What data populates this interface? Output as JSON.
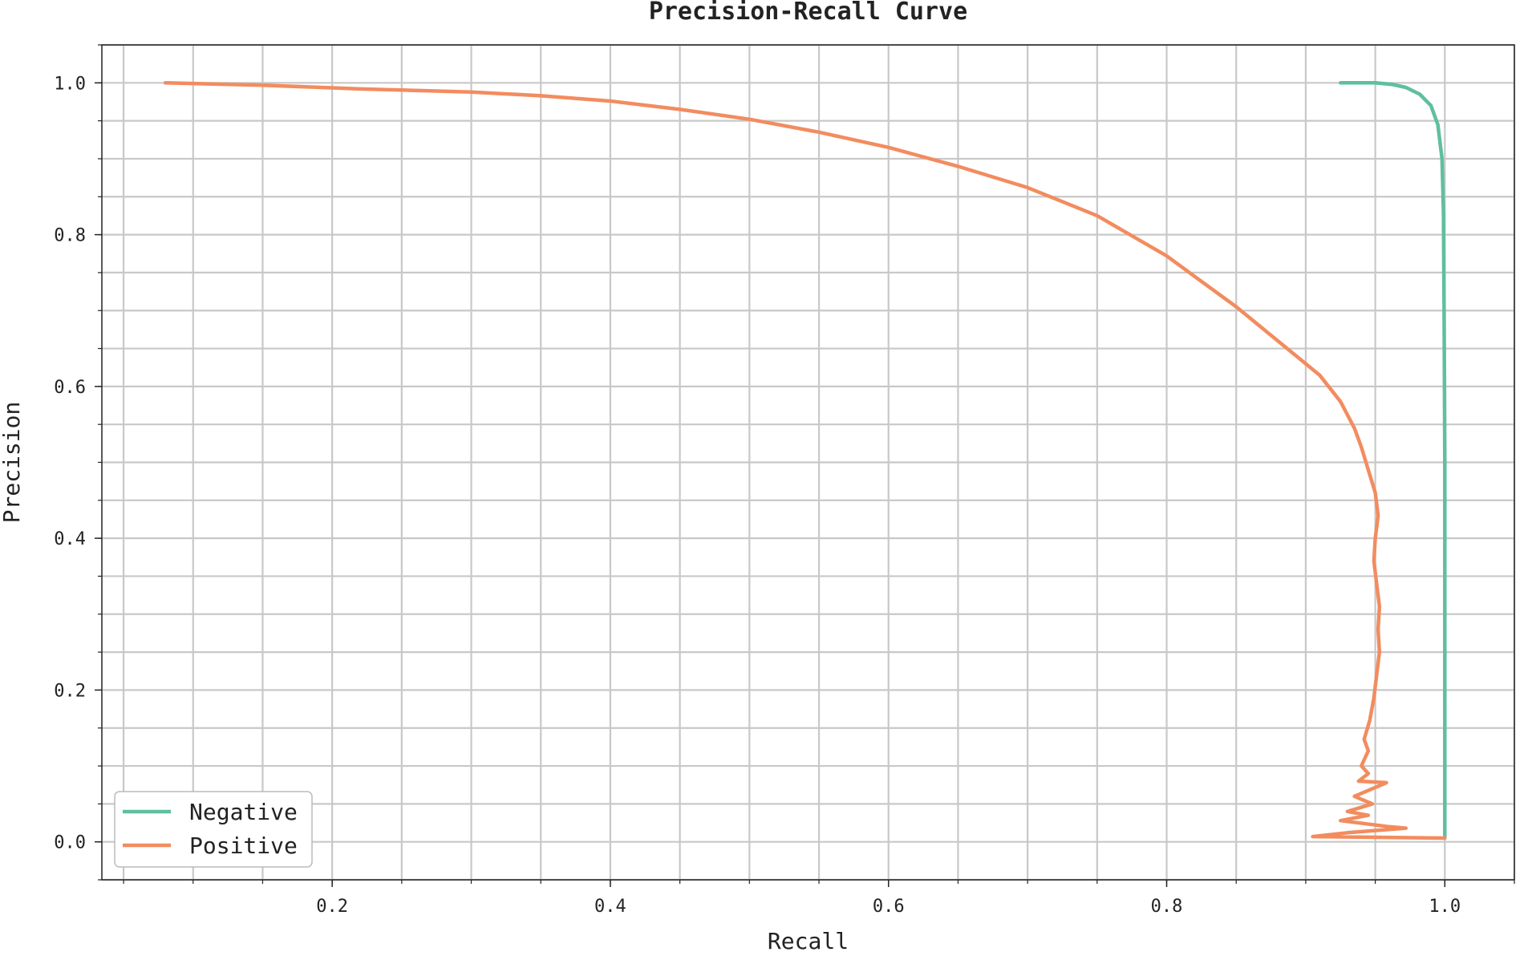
{
  "chart_data": {
    "type": "line",
    "title": "Precision-Recall Curve",
    "xlabel": "Recall",
    "ylabel": "Precision",
    "xlim": [
      0.0344,
      1.05
    ],
    "ylim": [
      -0.05,
      1.05
    ],
    "x_ticks": [
      {
        "value": 0.2,
        "label": "0.2"
      },
      {
        "value": 0.4,
        "label": "0.4"
      },
      {
        "value": 0.6,
        "label": "0.6"
      },
      {
        "value": 0.8,
        "label": "0.8"
      },
      {
        "value": 1.0,
        "label": "1.0"
      }
    ],
    "y_ticks": [
      {
        "value": 0.0,
        "label": "0.0"
      },
      {
        "value": 0.2,
        "label": "0.2"
      },
      {
        "value": 0.4,
        "label": "0.4"
      },
      {
        "value": 0.6,
        "label": "0.6"
      },
      {
        "value": 0.8,
        "label": "0.8"
      },
      {
        "value": 1.0,
        "label": "1.0"
      }
    ],
    "x_minor_step": 0.05,
    "y_minor_step": 0.05,
    "grid": true,
    "legend_position": "lower-left",
    "series": [
      {
        "name": "Negative",
        "color": "#5fbf9f",
        "points": [
          [
            0.925,
            1.0
          ],
          [
            0.95,
            1.0
          ],
          [
            0.962,
            0.998
          ],
          [
            0.972,
            0.994
          ],
          [
            0.982,
            0.985
          ],
          [
            0.99,
            0.97
          ],
          [
            0.995,
            0.945
          ],
          [
            0.998,
            0.9
          ],
          [
            0.999,
            0.83
          ],
          [
            0.9995,
            0.7
          ],
          [
            1.0,
            0.5
          ],
          [
            1.0,
            0.2
          ],
          [
            1.0,
            0.005
          ]
        ]
      },
      {
        "name": "Positive",
        "color": "#f28c5f",
        "points": [
          [
            0.08,
            1.0
          ],
          [
            0.15,
            0.997
          ],
          [
            0.22,
            0.992
          ],
          [
            0.3,
            0.988
          ],
          [
            0.35,
            0.983
          ],
          [
            0.4,
            0.976
          ],
          [
            0.45,
            0.965
          ],
          [
            0.5,
            0.952
          ],
          [
            0.55,
            0.935
          ],
          [
            0.6,
            0.915
          ],
          [
            0.65,
            0.89
          ],
          [
            0.7,
            0.862
          ],
          [
            0.75,
            0.825
          ],
          [
            0.8,
            0.772
          ],
          [
            0.82,
            0.745
          ],
          [
            0.85,
            0.705
          ],
          [
            0.88,
            0.66
          ],
          [
            0.91,
            0.615
          ],
          [
            0.925,
            0.58
          ],
          [
            0.935,
            0.545
          ],
          [
            0.94,
            0.52
          ],
          [
            0.945,
            0.49
          ],
          [
            0.95,
            0.46
          ],
          [
            0.952,
            0.43
          ],
          [
            0.95,
            0.4
          ],
          [
            0.949,
            0.37
          ],
          [
            0.951,
            0.34
          ],
          [
            0.953,
            0.31
          ],
          [
            0.952,
            0.28
          ],
          [
            0.953,
            0.25
          ],
          [
            0.951,
            0.22
          ],
          [
            0.949,
            0.19
          ],
          [
            0.946,
            0.16
          ],
          [
            0.942,
            0.135
          ],
          [
            0.945,
            0.12
          ],
          [
            0.94,
            0.1
          ],
          [
            0.945,
            0.09
          ],
          [
            0.938,
            0.08
          ],
          [
            0.958,
            0.078
          ],
          [
            0.935,
            0.06
          ],
          [
            0.948,
            0.05
          ],
          [
            0.93,
            0.04
          ],
          [
            0.945,
            0.035
          ],
          [
            0.925,
            0.028
          ],
          [
            0.96,
            0.02
          ],
          [
            0.972,
            0.018
          ],
          [
            0.93,
            0.012
          ],
          [
            0.905,
            0.007
          ],
          [
            1.0,
            0.005
          ]
        ]
      }
    ]
  }
}
